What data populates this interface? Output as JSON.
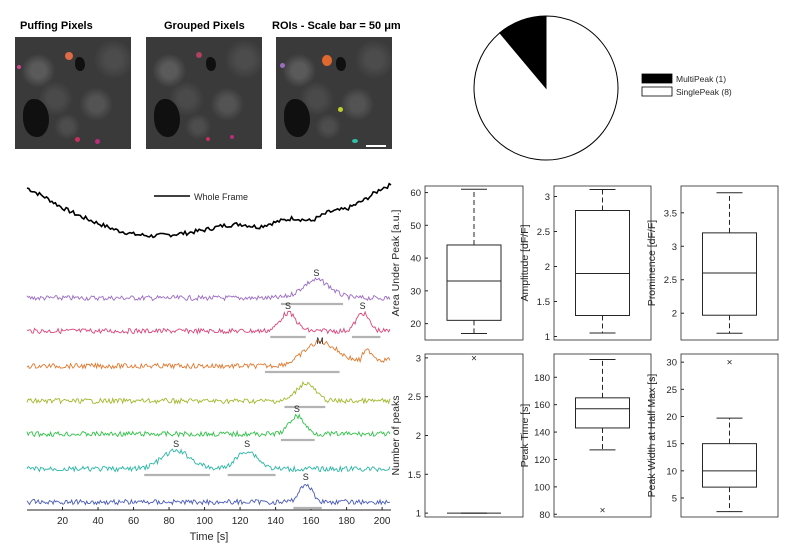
{
  "panels": {
    "puffing_title": "Puffing Pixels",
    "grouped_title": "Grouped Pixels",
    "rois_title": "ROIs - Scale bar = 50 μm"
  },
  "chart_data": [
    {
      "type": "pie",
      "labels": [
        "MultiPeak (1)",
        "SinglePeak (8)"
      ],
      "values": [
        1,
        8
      ],
      "colors": [
        "#000000",
        "#ffffff"
      ],
      "legend": "right"
    },
    {
      "type": "line",
      "xlabel": "Time [s]",
      "xlim": [
        0,
        205
      ],
      "xticks": [
        20,
        40,
        60,
        80,
        100,
        120,
        140,
        160,
        180,
        200
      ],
      "legend": "top",
      "series": [
        {
          "name": "Whole Frame",
          "color": "#000000",
          "x": [
            0,
            10,
            20,
            30,
            40,
            50,
            60,
            70,
            80,
            90,
            100,
            110,
            120,
            130,
            140,
            150,
            160,
            170,
            180,
            190,
            200,
            205
          ],
          "y": [
            0.95,
            0.8,
            0.62,
            0.48,
            0.36,
            0.25,
            0.18,
            0.15,
            0.17,
            0.2,
            0.25,
            0.32,
            0.35,
            0.3,
            0.38,
            0.45,
            0.4,
            0.55,
            0.6,
            0.75,
            0.95,
            1.0
          ]
        },
        {
          "color": "#9b6cc4",
          "peaks": [
            {
              "x": 163,
              "label": "S",
              "from": 143,
              "to": 178
            }
          ]
        },
        {
          "color": "#d9467a",
          "peaks": [
            {
              "x": 147,
              "label": "S",
              "from": 137,
              "to": 157
            },
            {
              "x": 189,
              "label": "S",
              "from": 183,
              "to": 199
            }
          ]
        },
        {
          "color": "#e07b32",
          "peaks": [
            {
              "x": 165,
              "label": "M",
              "from": 134,
              "to": 176
            }
          ]
        },
        {
          "color": "#a4b82e",
          "peaks": [
            {
              "x": 157,
              "label": "",
              "from": 145,
              "to": 168
            }
          ]
        },
        {
          "color": "#33c24a",
          "peaks": [
            {
              "x": 152,
              "label": "S",
              "from": 143,
              "to": 162
            }
          ]
        },
        {
          "color": "#2cb7a6",
          "peaks": [
            {
              "x": 84,
              "label": "S",
              "from": 66,
              "to": 103
            },
            {
              "x": 124,
              "label": "S",
              "from": 113,
              "to": 140
            }
          ]
        },
        {
          "color": "#4a5bb8",
          "peaks": [
            {
              "x": 157,
              "label": "S",
              "from": 150,
              "to": 166
            }
          ]
        }
      ]
    },
    {
      "type": "box",
      "ylabel": "Area Under Peak [a.u.]",
      "ylim": [
        15,
        62
      ],
      "yticks": [
        20,
        30,
        40,
        50,
        60
      ],
      "whisker_low": 17,
      "q1": 21,
      "median": 33,
      "q3": 44,
      "whisker_high": 61,
      "outliers": []
    },
    {
      "type": "box",
      "ylabel": "Amplitude [dF/F]",
      "ylim": [
        0.95,
        3.15
      ],
      "yticks": [
        1,
        1.5,
        2,
        2.5,
        3
      ],
      "whisker_low": 1.05,
      "q1": 1.3,
      "median": 1.9,
      "q3": 2.8,
      "whisker_high": 3.1,
      "outliers": []
    },
    {
      "type": "box",
      "ylabel": "Prominence [dF/F]",
      "ylim": [
        1.6,
        3.9
      ],
      "yticks": [
        2,
        2.5,
        3,
        3.5
      ],
      "whisker_low": 1.7,
      "q1": 1.97,
      "median": 2.6,
      "q3": 3.2,
      "whisker_high": 3.8,
      "outliers": []
    },
    {
      "type": "box",
      "ylabel": "Number of peaks",
      "ylim": [
        0.95,
        3.05
      ],
      "yticks": [
        1,
        1.5,
        2,
        2.5,
        3
      ],
      "whisker_low": 1,
      "q1": 1,
      "median": 1,
      "q3": 1,
      "whisker_high": 1,
      "outliers": [
        3
      ]
    },
    {
      "type": "box",
      "ylabel": "Peak Time [s]",
      "ylim": [
        78,
        197
      ],
      "yticks": [
        80,
        100,
        120,
        140,
        160,
        180
      ],
      "whisker_low": 127,
      "q1": 143,
      "median": 157,
      "q3": 165,
      "whisker_high": 193,
      "outliers": [
        83
      ]
    },
    {
      "type": "box",
      "ylabel": "Peak Width at Half Max [s]",
      "ylim": [
        1.5,
        31.5
      ],
      "yticks": [
        5,
        10,
        15,
        20,
        25,
        30
      ],
      "whisker_low": 2.5,
      "q1": 7,
      "median": 10,
      "q3": 15,
      "whisker_high": 19.7,
      "outliers": [
        30
      ]
    }
  ]
}
